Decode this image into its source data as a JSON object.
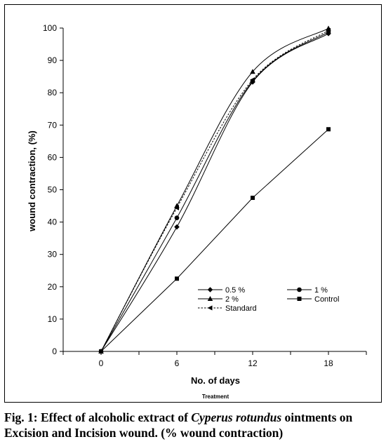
{
  "chart_data": {
    "type": "line",
    "ylabel": "wound contraction, (%)",
    "xlabel": "No. of days",
    "sublabel": "Treatment",
    "x": [
      0,
      6,
      12,
      18
    ],
    "xticks": [
      "0",
      "6",
      "12",
      "18"
    ],
    "xlim": [
      -3,
      21
    ],
    "ylim": [
      0,
      100
    ],
    "yticks": [
      "0",
      "10",
      "20",
      "30",
      "40",
      "50",
      "60",
      "70",
      "80",
      "90",
      "100"
    ],
    "grid": false,
    "legend_position": "lower-right",
    "series": [
      {
        "name": "0.5 %",
        "values": [
          0,
          38.5,
          83.3,
          98.3
        ],
        "marker": "diamond",
        "dash": "solid"
      },
      {
        "name": "1 %",
        "values": [
          0,
          41.3,
          83.6,
          98.8
        ],
        "marker": "circle",
        "dash": "solid"
      },
      {
        "name": "2 %",
        "values": [
          0,
          45.0,
          86.5,
          99.9
        ],
        "marker": "triangle",
        "dash": "solid"
      },
      {
        "name": "Control",
        "values": [
          0,
          22.5,
          47.5,
          68.7
        ],
        "marker": "square",
        "dash": "solid"
      },
      {
        "name": "Standard",
        "values": [
          0,
          44.4,
          84.0,
          99.3
        ],
        "marker": "triangle-left",
        "dash": "dotted"
      }
    ]
  },
  "caption": {
    "prefix": "Fig. 1: Effect of alcoholic extract of ",
    "species": "Cyperus rotundus",
    "suffix": " ointments on Excision and Incision wound. (% wound contraction)"
  }
}
